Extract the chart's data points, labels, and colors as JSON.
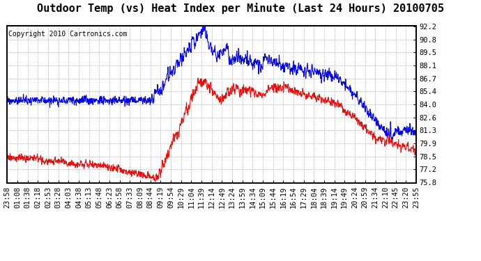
{
  "title": "Outdoor Temp (vs) Heat Index per Minute (Last 24 Hours) 20100705",
  "copyright": "Copyright 2010 Cartronics.com",
  "ylabel_right_ticks": [
    75.8,
    77.2,
    78.5,
    79.9,
    81.3,
    82.6,
    84.0,
    85.4,
    86.7,
    88.1,
    89.5,
    90.8,
    92.2
  ],
  "ymin": 75.8,
  "ymax": 92.2,
  "bg_color": "#ffffff",
  "grid_color": "#aaaaaa",
  "line_color_blue": "#0000ff",
  "line_color_red": "#ff0000",
  "x_tick_labels": [
    "23:58",
    "01:08",
    "01:38",
    "02:18",
    "02:53",
    "03:28",
    "04:03",
    "04:38",
    "05:13",
    "05:48",
    "06:23",
    "06:58",
    "07:33",
    "08:09",
    "08:44",
    "09:19",
    "09:54",
    "10:29",
    "11:04",
    "11:39",
    "12:14",
    "12:49",
    "13:24",
    "13:59",
    "14:34",
    "15:09",
    "15:44",
    "16:19",
    "16:54",
    "17:29",
    "18:04",
    "18:39",
    "19:14",
    "19:49",
    "20:24",
    "20:59",
    "21:34",
    "22:10",
    "22:45",
    "23:20",
    "23:55"
  ],
  "title_fontsize": 11,
  "copyright_fontsize": 7,
  "tick_fontsize": 7.5
}
